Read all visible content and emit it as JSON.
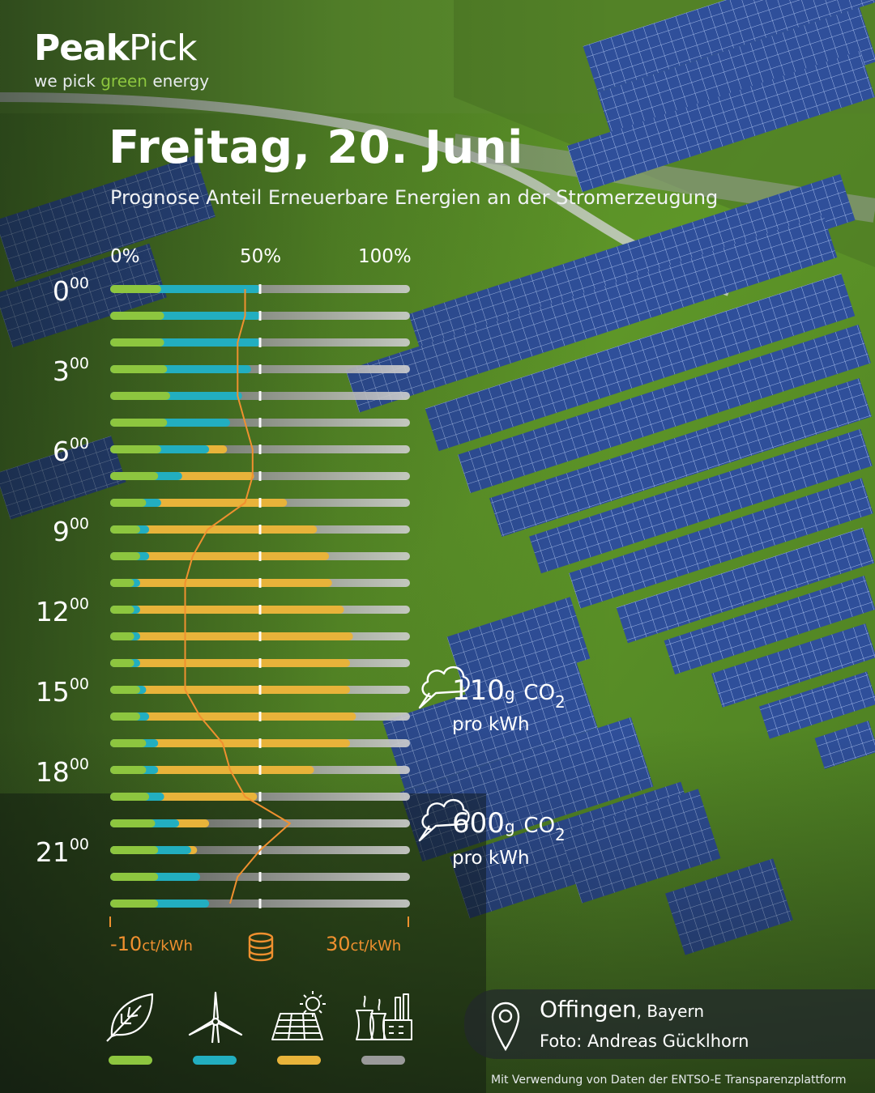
{
  "brand": {
    "name_bold": "Peak",
    "name_light": "Pick",
    "tagline_pre": "we pick ",
    "tagline_green": "green",
    "tagline_post": " energy"
  },
  "title": "Freitag, 20. Juni",
  "subtitle": "Prognose Anteil Erneuerbare Energien an der Stromerzeugung",
  "colors": {
    "biomass": "#8dc63f",
    "wind": "#22aec0",
    "solar": "#e8b33a",
    "conventional": "#9a9a9a",
    "price_line": "#f0902f"
  },
  "chart_data": {
    "type": "bar",
    "orientation": "horizontal",
    "stacked": true,
    "x_ticks": [
      "0%",
      "50%",
      "100%"
    ],
    "xlim": [
      0,
      100
    ],
    "categories": [
      "0",
      "1",
      "2",
      "3",
      "4",
      "5",
      "6",
      "7",
      "8",
      "9",
      "10",
      "11",
      "12",
      "13",
      "14",
      "15",
      "16",
      "17",
      "18",
      "19",
      "20",
      "21",
      "22",
      "23"
    ],
    "hour_labels": [
      {
        "h": "0",
        "m": "00"
      },
      {
        "h": "3",
        "m": "00"
      },
      {
        "h": "6",
        "m": "00"
      },
      {
        "h": "9",
        "m": "00"
      },
      {
        "h": "12",
        "m": "00"
      },
      {
        "h": "15",
        "m": "00"
      },
      {
        "h": "18",
        "m": "00"
      },
      {
        "h": "21",
        "m": "00"
      }
    ],
    "series": [
      {
        "name": "Biomasse",
        "color_key": "biomass",
        "values": [
          17,
          18,
          18,
          19,
          20,
          19,
          17,
          16,
          12,
          10,
          10,
          8,
          8,
          8,
          8,
          10,
          10,
          12,
          12,
          13,
          15,
          16,
          16,
          16
        ]
      },
      {
        "name": "Wind",
        "color_key": "wind",
        "values": [
          33,
          32,
          32,
          28,
          24,
          21,
          16,
          8,
          5,
          3,
          3,
          2,
          2,
          2,
          2,
          2,
          3,
          4,
          4,
          5,
          8,
          11,
          14,
          17
        ]
      },
      {
        "name": "Solar",
        "color_key": "solar",
        "values": [
          0,
          0,
          0,
          0,
          0,
          0,
          6,
          24,
          42,
          56,
          60,
          64,
          68,
          71,
          70,
          68,
          69,
          64,
          52,
          31,
          10,
          2,
          0,
          0
        ]
      }
    ],
    "price_axis": {
      "min_label": "-10",
      "max_label": "30",
      "unit": "ct/kWh",
      "range": [
        -10,
        30
      ]
    },
    "price_values": [
      8,
      8,
      7,
      7,
      7,
      8,
      9,
      9,
      8,
      3,
      1,
      0,
      0,
      0,
      0,
      0,
      2,
      5,
      6,
      8,
      14,
      10,
      7,
      6
    ]
  },
  "annotations": [
    {
      "value": "110",
      "unit_g": "g",
      "co2": "CO",
      "co2_sub": "2",
      "per": "pro kWh"
    },
    {
      "value": "600",
      "unit_g": "g",
      "co2": "CO",
      "co2_sub": "2",
      "per": "pro kWh"
    }
  ],
  "legend_icons": [
    "leaf-icon",
    "wind-turbine-icon",
    "solar-panel-icon",
    "power-plant-icon"
  ],
  "location": {
    "name": "Offingen",
    "region": ", Bayern",
    "icon": "map-pin-icon"
  },
  "photo_credit": "Foto: Andreas Gücklhorn",
  "data_credit": "Mit Verwendung von Daten der ENTSO-E Transparenzplattform"
}
